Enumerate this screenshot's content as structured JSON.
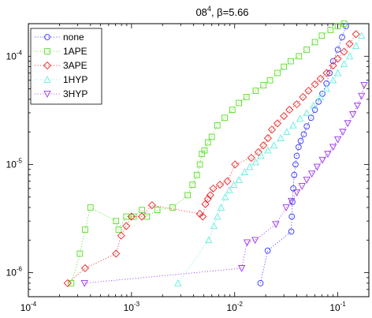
{
  "chart_data": {
    "type": "scatter",
    "title": "08",
    "title_superscript": "4",
    "title_suffix": ", β=5.66",
    "xlabel": "",
    "ylabel": "",
    "xscale": "log",
    "yscale": "log",
    "xlim": [
      0.0001,
      0.2
    ],
    "ylim": [
      6e-07,
      0.0002
    ],
    "grid": false,
    "legend_position": "top-left",
    "x_tick_labels": [
      {
        "base": "10",
        "exp": "-4",
        "value": 0.0001
      },
      {
        "base": "10",
        "exp": "-3",
        "value": 0.001
      },
      {
        "base": "10",
        "exp": "-2",
        "value": 0.01
      },
      {
        "base": "10",
        "exp": "-1",
        "value": 0.1
      }
    ],
    "y_tick_labels": [
      {
        "base": "10",
        "exp": "-6",
        "value": 1e-06
      },
      {
        "base": "10",
        "exp": "-5",
        "value": 1e-05
      },
      {
        "base": "10",
        "exp": "-4",
        "value": 0.0001
      }
    ],
    "series": [
      {
        "name": "none",
        "marker": "circle",
        "color": "#3333ff",
        "x": [
          0.0178,
          0.0209,
          0.0354,
          0.0358,
          0.0363,
          0.037,
          0.0378,
          0.0389,
          0.04,
          0.0417,
          0.0437,
          0.0468,
          0.05,
          0.055,
          0.06,
          0.065,
          0.0708,
          0.0776,
          0.0832,
          0.09,
          0.1,
          0.11,
          0.12
        ],
        "y": [
          8e-07,
          1.6e-06,
          2.4e-06,
          3.3e-06,
          4.5e-06,
          6e-06,
          8e-06,
          1e-05,
          1.2e-05,
          1.45e-05,
          1.65e-05,
          1.9e-05,
          2.25e-05,
          2.7e-05,
          3.2e-05,
          3.8e-05,
          4.5e-05,
          5.6e-05,
          7e-05,
          9e-05,
          0.000115,
          0.00015,
          0.00019
        ]
      },
      {
        "name": "1APE",
        "marker": "square",
        "color": "#55dd22",
        "x": [
          0.00026,
          0.000316,
          0.000355,
          0.0004,
          0.000708,
          0.00075,
          0.00089,
          0.00105,
          0.00126,
          0.00141,
          0.00178,
          0.0025,
          0.0035,
          0.0039,
          0.0043,
          0.0046,
          0.0048,
          0.0051,
          0.0055,
          0.006,
          0.0068,
          0.008,
          0.0095,
          0.011,
          0.013,
          0.016,
          0.019,
          0.022,
          0.026,
          0.03,
          0.035,
          0.042,
          0.05,
          0.06,
          0.07,
          0.085,
          0.1,
          0.115
        ],
        "y": [
          8e-07,
          1.5e-06,
          2.5e-06,
          4e-06,
          3e-06,
          2.5e-06,
          3.3e-06,
          3.3e-06,
          3.8e-06,
          3.3e-06,
          3.8e-06,
          4e-06,
          5.2e-06,
          6.5e-06,
          8e-06,
          1e-05,
          1.25e-05,
          1.35e-05,
          1.6e-05,
          1.8e-05,
          2.3e-05,
          2.7e-05,
          3.2e-05,
          3.7e-05,
          4.2e-05,
          4.8e-05,
          5.4e-05,
          6e-05,
          7e-05,
          8e-05,
          9e-05,
          0.0001,
          0.000115,
          0.000135,
          0.000155,
          0.000175,
          0.00019,
          0.0002
        ]
      },
      {
        "name": "3APE",
        "marker": "diamond",
        "color": "#ee2222",
        "x": [
          0.00024,
          0.000355,
          0.000708,
          0.000794,
          0.00089,
          0.001,
          0.00126,
          0.00158,
          0.0046,
          0.0049,
          0.0052,
          0.0055,
          0.0058,
          0.0062,
          0.0072,
          0.0085,
          0.0101,
          0.0145,
          0.017,
          0.019,
          0.021,
          0.023,
          0.026,
          0.03,
          0.034,
          0.04,
          0.046,
          0.052,
          0.06,
          0.068,
          0.078,
          0.09,
          0.1,
          0.115,
          0.13,
          0.15
        ],
        "y": [
          8e-07,
          1.1e-06,
          1.5e-06,
          2.2e-06,
          2.7e-06,
          3.3e-06,
          3.3e-06,
          4.2e-06,
          3.5e-06,
          3.3e-06,
          4.3e-06,
          4.8e-06,
          5.2e-06,
          6e-06,
          6.5e-06,
          7e-06,
          1e-05,
          1.15e-05,
          1.3e-05,
          1.5e-05,
          1.75e-05,
          2.1e-05,
          2.4e-05,
          2.8e-05,
          3.2e-05,
          3.6e-05,
          4.2e-05,
          4.8e-05,
          5.5e-05,
          6.2e-05,
          7e-05,
          8.2e-05,
          9.5e-05,
          0.00011,
          0.00013,
          0.00016
        ]
      },
      {
        "name": "1HYP",
        "marker": "triangle-up",
        "color": "#66eedd",
        "x": [
          0.00282,
          0.0056,
          0.0063,
          0.0068,
          0.0074,
          0.0081,
          0.0089,
          0.0098,
          0.011,
          0.0125,
          0.014,
          0.016,
          0.018,
          0.021,
          0.024,
          0.028,
          0.032,
          0.037,
          0.043,
          0.05,
          0.058,
          0.068,
          0.078,
          0.09,
          0.1,
          0.115,
          0.13,
          0.15,
          0.17
        ],
        "y": [
          8e-07,
          2e-06,
          2.7e-06,
          3.3e-06,
          4e-06,
          5e-06,
          5.8e-06,
          6.5e-06,
          7.2e-06,
          8.5e-06,
          9.5e-06,
          1.05e-05,
          1.2e-05,
          1.35e-05,
          1.5e-05,
          1.75e-05,
          2e-05,
          2.3e-05,
          2.65e-05,
          3e-05,
          3.5e-05,
          4.2e-05,
          5e-05,
          6e-05,
          7e-05,
          8.5e-05,
          0.0001,
          0.000125,
          0.000155
        ]
      },
      {
        "name": "3HYP",
        "marker": "triangle-down",
        "color": "#9933ee",
        "x": [
          0.00035,
          0.0117,
          0.0132,
          0.0158,
          0.0251,
          0.0316,
          0.0355,
          0.04,
          0.045,
          0.05,
          0.056,
          0.063,
          0.071,
          0.08,
          0.09,
          0.1,
          0.112,
          0.125,
          0.14,
          0.155,
          0.17,
          0.18
        ],
        "y": [
          8e-07,
          1.1e-06,
          1.9e-06,
          2e-06,
          2.8e-06,
          4e-06,
          4.6e-06,
          5.5e-06,
          6.3e-06,
          7.2e-06,
          8.2e-06,
          9.5e-06,
          1.1e-05,
          1.25e-05,
          1.45e-05,
          1.7e-05,
          2e-05,
          2.4e-05,
          2.9e-05,
          3.5e-05,
          4.3e-05,
          5.4e-05
        ]
      }
    ]
  }
}
